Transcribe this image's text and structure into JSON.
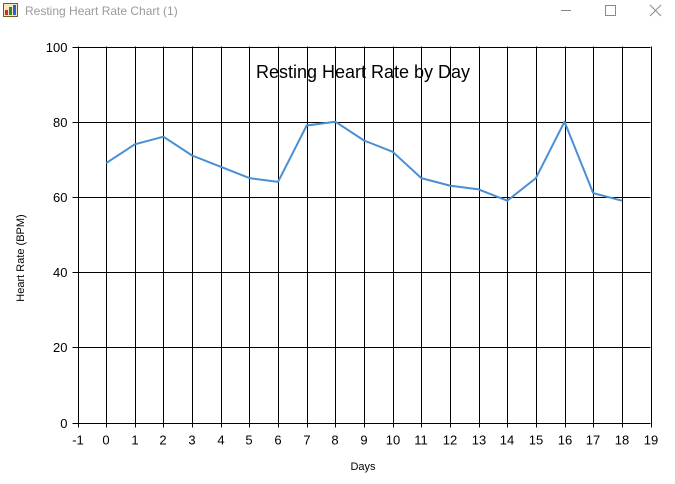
{
  "window": {
    "title": "Resting Heart Rate Chart (1)",
    "app_icon": "chart-app-icon",
    "controls": {
      "minimize_icon": "minimize-icon",
      "maximize_icon": "maximize-icon",
      "close_icon": "close-icon"
    }
  },
  "chart_data": {
    "type": "line",
    "title": "Resting Heart Rate by Day",
    "xlabel": "Days",
    "ylabel": "Heart Rate (BPM)",
    "xlim": [
      -1,
      19
    ],
    "ylim": [
      0,
      100
    ],
    "x_ticks": [
      -1,
      0,
      1,
      2,
      3,
      4,
      5,
      6,
      7,
      8,
      9,
      10,
      11,
      12,
      13,
      14,
      15,
      16,
      17,
      18,
      19
    ],
    "y_ticks": [
      0,
      20,
      40,
      60,
      80,
      100
    ],
    "grid": true,
    "line_color": "#4a8fd4",
    "series": [
      {
        "x": [
          0,
          1,
          2,
          3,
          4,
          5,
          6,
          7,
          8,
          9,
          10,
          11,
          12,
          13,
          14,
          15,
          16,
          17,
          18
        ],
        "values": [
          69,
          74,
          76,
          71,
          68,
          65,
          64,
          79,
          80,
          75,
          72,
          65,
          63,
          62,
          59,
          65,
          80,
          61,
          59
        ]
      }
    ]
  }
}
